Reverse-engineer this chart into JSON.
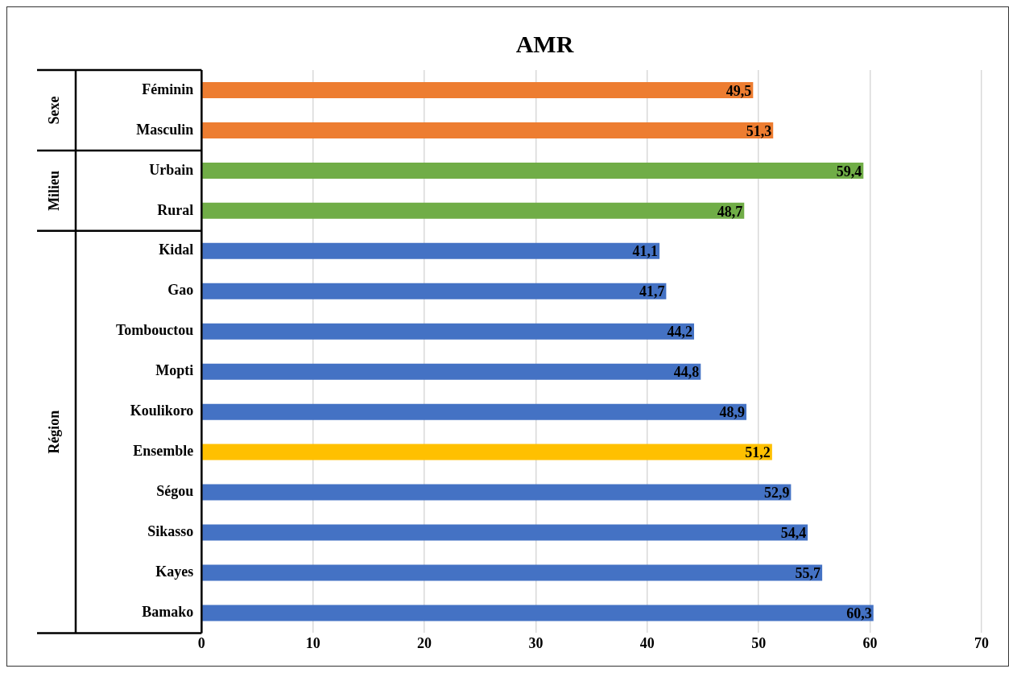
{
  "chart_data": {
    "type": "bar",
    "title": "AMR",
    "orientation": "horizontal",
    "categories": [
      "Féminin",
      "Masculin",
      "Urbain",
      "Rural",
      "Kidal",
      "Gao",
      "Tombouctou",
      "Mopti",
      "Koulikoro",
      "Ensemble",
      "Ségou",
      "Sikasso",
      "Kayes",
      "Bamako"
    ],
    "values": [
      49.5,
      51.3,
      59.4,
      48.7,
      41.1,
      41.7,
      44.2,
      44.8,
      48.9,
      51.2,
      52.9,
      54.4,
      55.7,
      60.3
    ],
    "colors": [
      "#ed7d31",
      "#ed7d31",
      "#70ad47",
      "#70ad47",
      "#4472c4",
      "#4472c4",
      "#4472c4",
      "#4472c4",
      "#4472c4",
      "#ffc000",
      "#4472c4",
      "#4472c4",
      "#4472c4",
      "#4472c4"
    ],
    "value_labels": [
      "49,5",
      "51,3",
      "59,4",
      "48,7",
      "41,1",
      "41,7",
      "44,2",
      "44,8",
      "48,9",
      "51,2",
      "52,9",
      "54,4",
      "55,7",
      "60,3"
    ],
    "xlim": [
      0,
      70
    ],
    "xticks": [
      0,
      10,
      20,
      30,
      40,
      50,
      60,
      70
    ],
    "grid": "x",
    "legend": false,
    "annotations": [
      "Sexe",
      "Milieu",
      "Région"
    ]
  }
}
